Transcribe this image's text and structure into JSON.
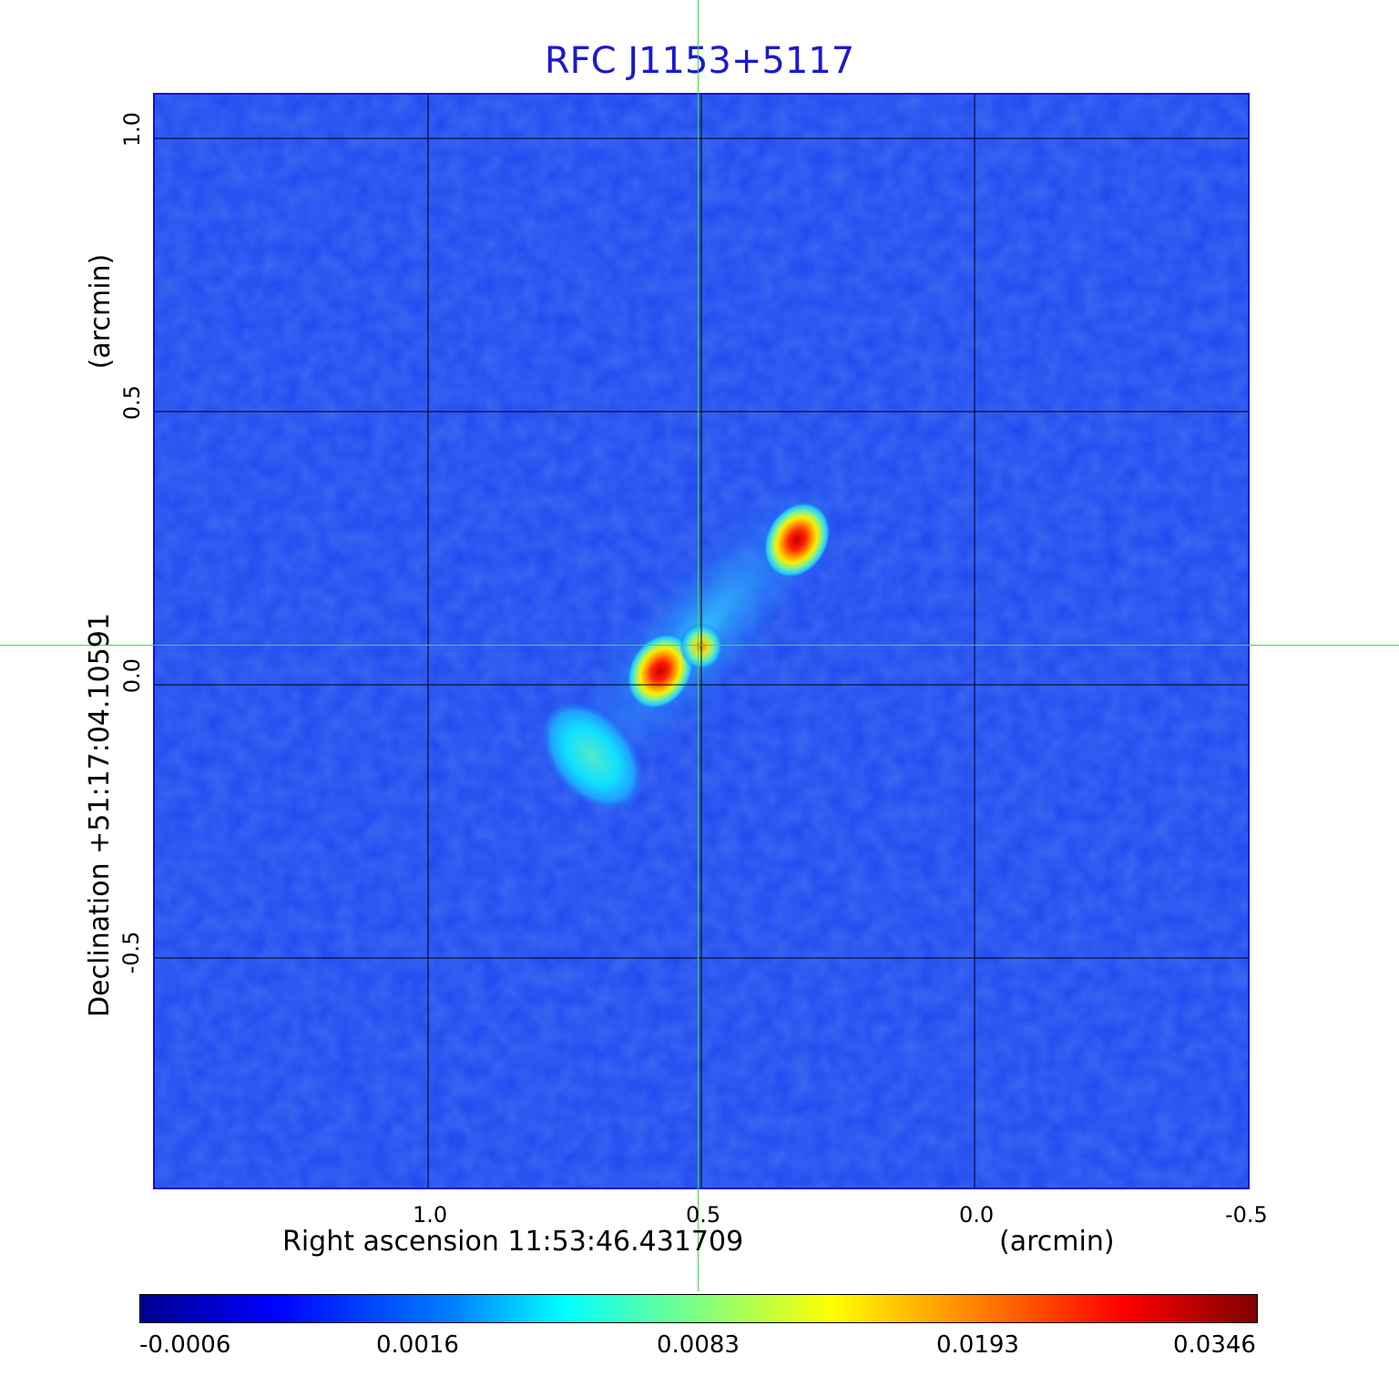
{
  "title": "RFC J1153+5117",
  "axes": {
    "x_label": "Right ascension  11:53:46.431709",
    "x_unit": "(arcmin)",
    "y_label": "Declination  +51:17:04.10591",
    "y_unit": "(arcmin)",
    "x_ticks": [
      "1.0",
      "0.5",
      "0.0",
      "-0.5"
    ],
    "y_ticks": [
      "1.0",
      "0.5",
      "0.0",
      "-0.5"
    ]
  },
  "colorbar": {
    "colormap": "jet",
    "ticks": [
      "-0.0006",
      "0.0016",
      "0.0083",
      "0.0193",
      "0.0346"
    ]
  },
  "colors": {
    "title": "#1a1ad0",
    "background_map": "#1e46f0",
    "crosshair": "#39e039",
    "grid": "#000000"
  },
  "map_data": {
    "x_range_arcmin": [
      1.5,
      -0.5
    ],
    "y_range_arcmin": [
      -0.92,
      1.08
    ],
    "reference_position_arcmin": [
      0.5,
      0.07
    ],
    "components": [
      {
        "kind": "peak",
        "ra_arcmin": 0.325,
        "dec_arcmin": 0.265,
        "level": 0.0346
      },
      {
        "kind": "peak",
        "ra_arcmin": 0.575,
        "dec_arcmin": 0.025,
        "level": 0.0346
      },
      {
        "kind": "knot",
        "ra_arcmin": 0.5,
        "dec_arcmin": 0.07,
        "level": 0.0193
      },
      {
        "kind": "extended",
        "ra_arcmin": 0.7,
        "dec_arcmin": -0.13,
        "level": 0.0083
      }
    ]
  }
}
